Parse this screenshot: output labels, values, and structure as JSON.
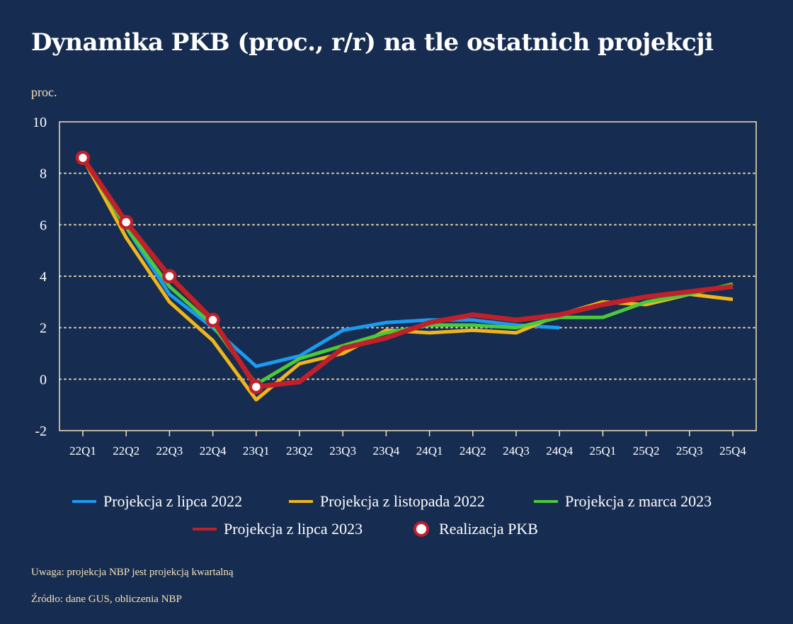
{
  "title": "Dynamika PKB (proc., r/r) na tle ostatnich projekcji",
  "y_unit": "proc.",
  "note": "Uwaga: projekcja NBP jest projekcją kwartalną",
  "source": "Źródło: dane GUS, obliczenia NBP",
  "colors": {
    "background": "#162c50",
    "axis": "#f3e2b8",
    "blue": "#1a9af0",
    "yellow": "#f0b51a",
    "green": "#4cc93a",
    "red": "#c0202a"
  },
  "chart_data": {
    "type": "line",
    "categories": [
      "22Q1",
      "22Q2",
      "22Q3",
      "22Q4",
      "23Q1",
      "23Q2",
      "23Q3",
      "23Q4",
      "24Q1",
      "24Q2",
      "24Q3",
      "24Q4",
      "25Q1",
      "25Q2",
      "25Q3",
      "25Q4"
    ],
    "ylim": [
      -2,
      10
    ],
    "yticks": [
      "-2",
      "0",
      "2",
      "4",
      "6",
      "8",
      "10"
    ],
    "grid": "horizontal dotted",
    "series": [
      {
        "name": "Projekcja z lipca 2022",
        "color": "#1a9af0",
        "values": [
          8.6,
          5.9,
          3.3,
          2.0,
          0.5,
          0.9,
          1.9,
          2.2,
          2.3,
          2.3,
          2.1,
          2.0,
          null,
          null,
          null,
          null
        ]
      },
      {
        "name": "Projekcja z listopada 2022",
        "color": "#f0b51a",
        "values": [
          8.6,
          5.5,
          3.0,
          1.5,
          -0.8,
          0.6,
          1.0,
          1.9,
          1.8,
          1.9,
          1.8,
          2.5,
          3.0,
          2.9,
          3.3,
          3.1
        ]
      },
      {
        "name": "Projekcja z marca 2023",
        "color": "#4cc93a",
        "values": [
          8.6,
          5.9,
          3.6,
          2.1,
          -0.2,
          0.8,
          1.3,
          1.8,
          2.1,
          2.1,
          2.0,
          2.4,
          2.4,
          3.0,
          3.3,
          3.7
        ]
      },
      {
        "name": "Projekcja z lipca 2023",
        "color": "#c0202a",
        "values": [
          8.6,
          6.1,
          4.0,
          2.3,
          -0.3,
          -0.1,
          1.2,
          1.6,
          2.2,
          2.5,
          2.3,
          2.5,
          2.9,
          3.2,
          3.4,
          3.6
        ]
      }
    ],
    "realization": {
      "name": "Realizacja PKB",
      "values": [
        8.6,
        6.1,
        4.0,
        2.3,
        -0.3,
        null,
        null,
        null,
        null,
        null,
        null,
        null,
        null,
        null,
        null,
        null
      ]
    }
  }
}
